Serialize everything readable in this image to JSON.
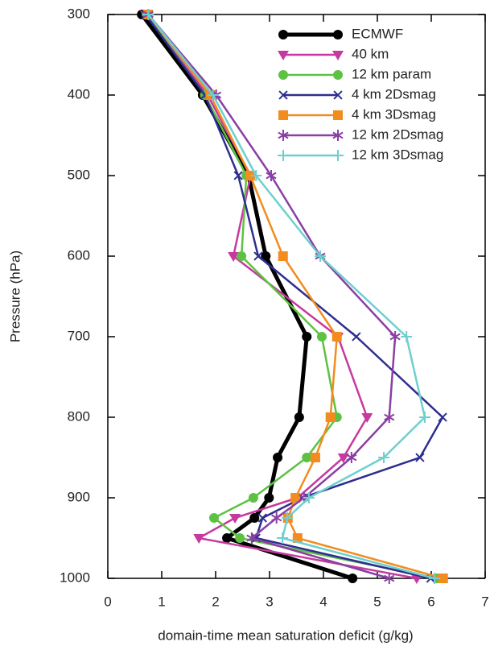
{
  "chart_data": {
    "type": "line",
    "xlabel": "domain-time mean saturation deficit (g/kg)",
    "ylabel": "Pressure (hPa)",
    "y": [
      300,
      400,
      500,
      600,
      700,
      800,
      850,
      900,
      925,
      950,
      1000
    ],
    "xlim": [
      0,
      7
    ],
    "xticks": [
      0,
      1,
      2,
      3,
      4,
      5,
      6,
      7
    ],
    "ylim": [
      1000,
      300
    ],
    "yticks": [
      300,
      400,
      500,
      600,
      700,
      800,
      900,
      1000
    ],
    "y_inverted": true,
    "legend": "upper right",
    "series": [
      {
        "name": "ECMWF",
        "color": "#000000",
        "marker": "circle",
        "values": [
          0.63,
          1.76,
          2.61,
          2.93,
          3.69,
          3.55,
          3.15,
          2.99,
          2.72,
          2.21,
          4.54
        ]
      },
      {
        "name": "40 km",
        "color": "#c6399e",
        "marker": "triangle-down",
        "values": [
          0.7,
          1.85,
          2.65,
          2.33,
          4.27,
          4.81,
          4.37,
          3.52,
          2.36,
          1.69,
          5.73
        ]
      },
      {
        "name": "12 km param",
        "color": "#5dc243",
        "marker": "circle",
        "values": [
          0.72,
          1.8,
          2.57,
          2.48,
          3.97,
          4.25,
          3.69,
          2.7,
          1.97,
          2.45,
          6.1
        ]
      },
      {
        "name": "4 km 2Dsmag",
        "color": "#2e2e8f",
        "marker": "x",
        "values": [
          0.7,
          1.8,
          2.42,
          2.79,
          4.61,
          6.21,
          5.79,
          3.61,
          2.87,
          2.75,
          5.99
        ]
      },
      {
        "name": "4 km 3Dsmag",
        "color": "#f28c1f",
        "marker": "square",
        "values": [
          0.75,
          1.9,
          2.64,
          3.25,
          4.25,
          4.13,
          3.85,
          3.48,
          3.34,
          3.52,
          6.22
        ]
      },
      {
        "name": "12 km 2Dsmag",
        "color": "#8a3fa3",
        "marker": "star",
        "values": [
          0.75,
          2.01,
          3.03,
          3.94,
          5.33,
          5.22,
          4.52,
          3.64,
          3.13,
          2.67,
          5.22
        ]
      },
      {
        "name": "12 km 3Dsmag",
        "color": "#6fcfcf",
        "marker": "plus",
        "values": [
          0.75,
          1.95,
          2.75,
          3.94,
          5.54,
          5.88,
          5.12,
          3.73,
          3.33,
          3.24,
          6.06
        ]
      }
    ]
  }
}
